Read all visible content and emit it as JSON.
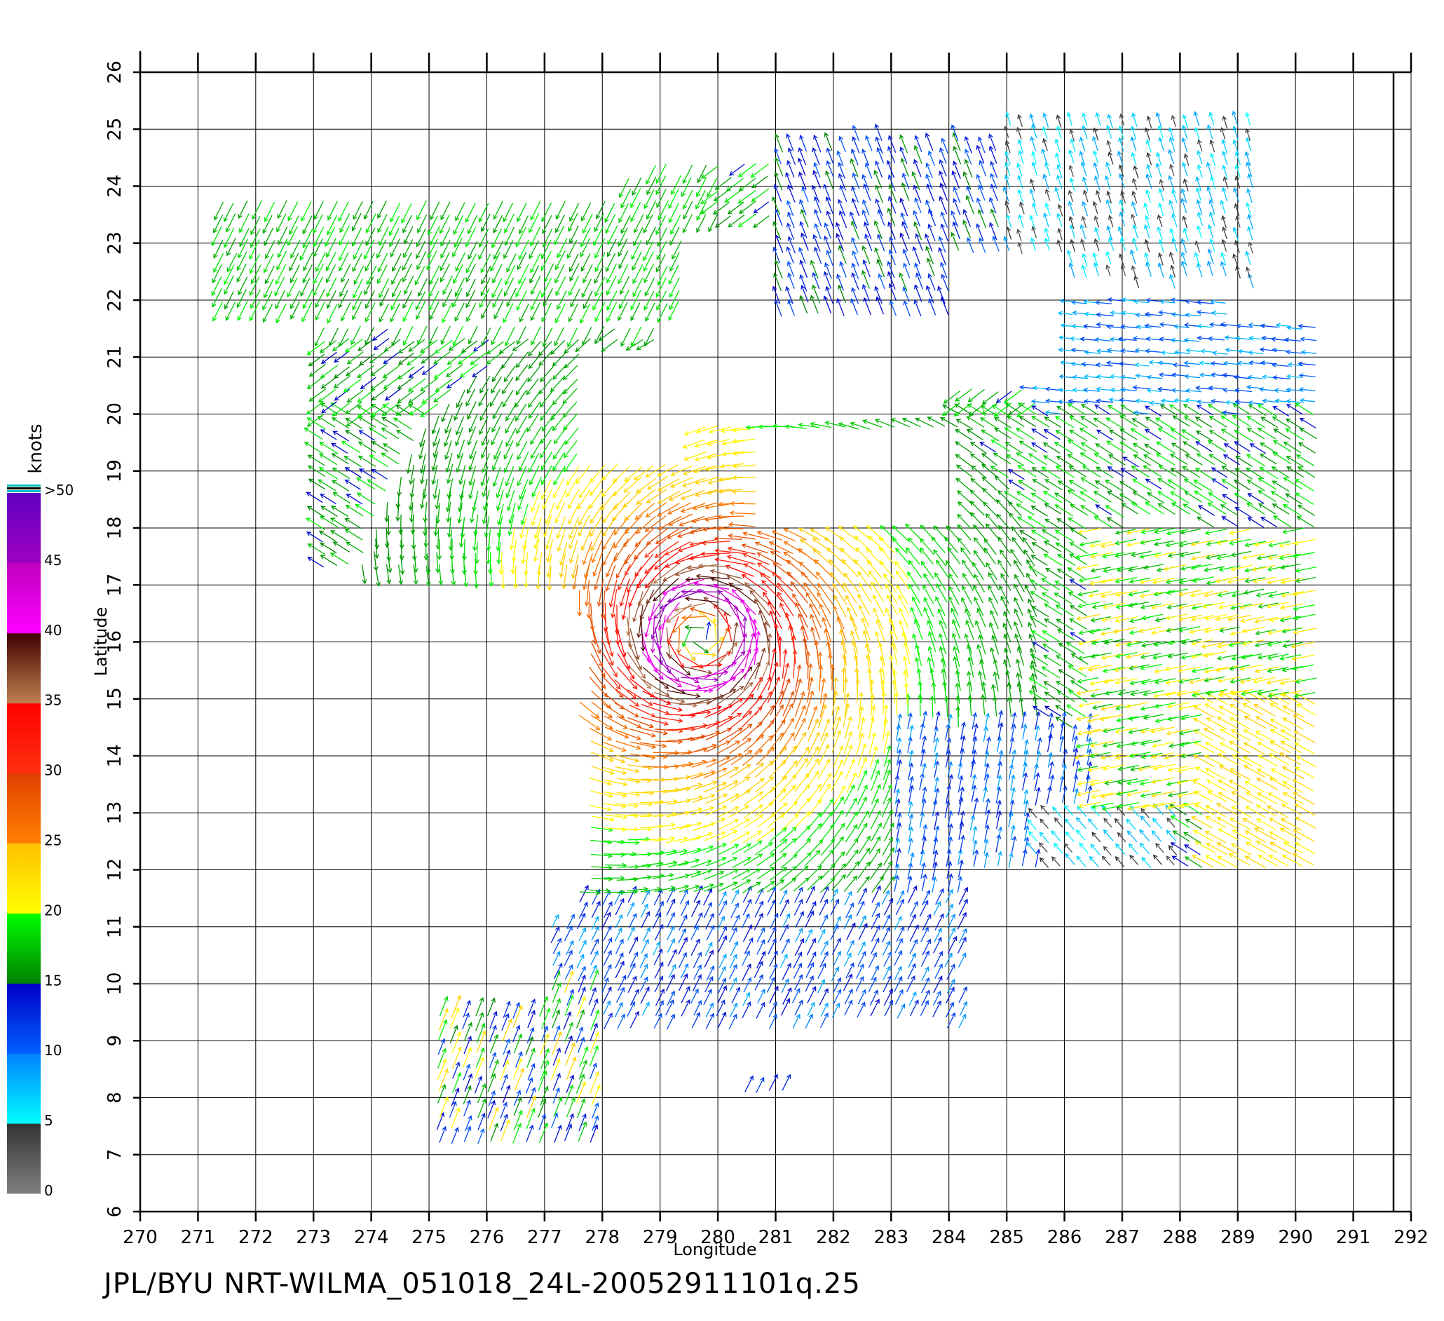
{
  "footer": {
    "title": "JPL/BYU  NRT-WILMA_051018_24L-20052911101q.25"
  },
  "chart_data": {
    "type": "wind-vector map",
    "xlabel": "Longitude",
    "ylabel": "Latitude",
    "xlim": [
      270,
      292
    ],
    "ylim": [
      6,
      26
    ],
    "x_ticks": [
      270,
      271,
      272,
      273,
      274,
      275,
      276,
      277,
      278,
      279,
      280,
      281,
      282,
      283,
      284,
      285,
      286,
      287,
      288,
      289,
      290,
      291,
      292
    ],
    "y_ticks": [
      6,
      7,
      8,
      9,
      10,
      11,
      12,
      13,
      14,
      15,
      16,
      17,
      18,
      19,
      20,
      21,
      22,
      23,
      24,
      25,
      26
    ],
    "grid": true,
    "colorbar": {
      "label": "knots",
      "tick_labels": [
        "0",
        "5",
        "10",
        "15",
        "20",
        "25",
        "30",
        "35",
        "40",
        "45",
        ">50"
      ],
      "bands": [
        {
          "from": 0,
          "to": 5,
          "colors": [
            "#808080",
            "#333333"
          ]
        },
        {
          "from": 5,
          "to": 10,
          "colors": [
            "#00ffff",
            "#0080ff"
          ]
        },
        {
          "from": 10,
          "to": 15,
          "colors": [
            "#0060ff",
            "#0000c8"
          ]
        },
        {
          "from": 15,
          "to": 20,
          "colors": [
            "#008000",
            "#00ff00"
          ]
        },
        {
          "from": 20,
          "to": 25,
          "colors": [
            "#ffff00",
            "#ffc000"
          ]
        },
        {
          "from": 25,
          "to": 30,
          "colors": [
            "#ff8000",
            "#e04000"
          ]
        },
        {
          "from": 30,
          "to": 35,
          "colors": [
            "#ff3010",
            "#ff0000"
          ]
        },
        {
          "from": 35,
          "to": 40,
          "colors": [
            "#c08050",
            "#400000"
          ]
        },
        {
          "from": 40,
          "to": 45,
          "colors": [
            "#ff00ff",
            "#c000c0"
          ]
        },
        {
          "from": 45,
          "to": 50,
          "colors": [
            "#a000c0",
            "#6000c0"
          ]
        }
      ],
      "top_stripes": [
        "#00c0c0",
        "#000000",
        "#00c0c0"
      ]
    },
    "storm_center": {
      "lon": 279.7,
      "lat": 16.1
    },
    "wind_field_regions": [
      {
        "lon": [
          271.3,
          279.5
        ],
        "lat": [
          21.8,
          23.8
        ]
      },
      {
        "lon": [
          278.3,
          281.6
        ],
        "lat": [
          23.3,
          24.4
        ]
      },
      {
        "lon": [
          281.0,
          285.3
        ],
        "lat": [
          21.3,
          24.8
        ]
      },
      {
        "lon": [
          285.0,
          289.3
        ],
        "lat": [
          22.2,
          25.2
        ]
      },
      {
        "lon": [
          285.8,
          289.0
        ],
        "lat": [
          20.1,
          22.0
        ]
      },
      {
        "lon": [
          273.0,
          290.5
        ],
        "lat": [
          11.3,
          21.6
        ]
      },
      {
        "lon": [
          277.0,
          284.2
        ],
        "lat": [
          9.2,
          11.3
        ]
      },
      {
        "lon": [
          275.0,
          277.9
        ],
        "lat": [
          7.1,
          9.5
        ]
      },
      {
        "lon": [
          280.3,
          281.2
        ],
        "lat": [
          7.9,
          8.2
        ]
      }
    ],
    "wind_field_gaps": [
      {
        "lon": [
          280.8,
          284.3
        ],
        "lat": [
          17.9,
          19.7
        ]
      },
      {
        "lon": [
          277.6,
          279.6
        ],
        "lat": [
          19.2,
          21.3
        ]
      },
      {
        "lon": [
          271.0,
          277.6
        ],
        "lat": [
          11.0,
          17.3
        ]
      },
      {
        "lon": [
          284.3,
          292.0
        ],
        "lat": [
          9.0,
          11.9
        ]
      },
      {
        "lon": [
          279.1,
          284.0
        ],
        "lat": [
          19.8,
          21.7
        ]
      },
      {
        "lon": [
          284.1,
          286.1
        ],
        "lat": [
          20.6,
          22.8
        ]
      }
    ]
  }
}
